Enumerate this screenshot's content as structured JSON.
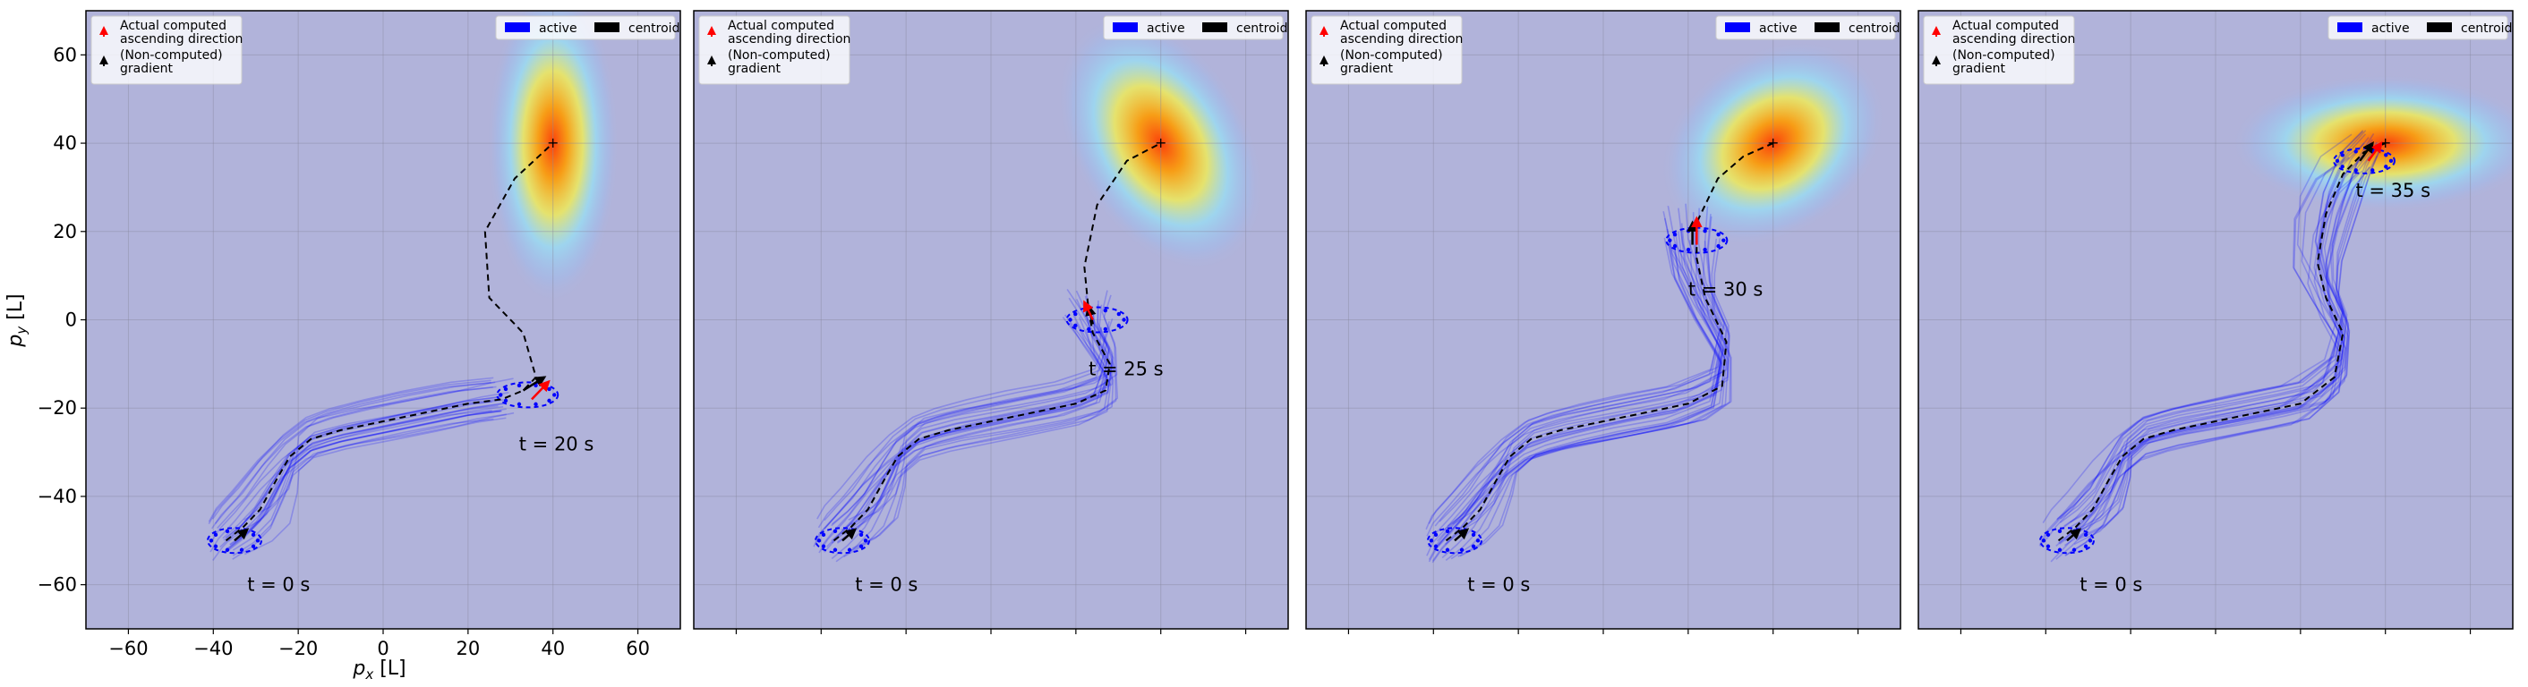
{
  "chart_data": {
    "type": "line",
    "xlabel": "p_x [L]",
    "ylabel": "p_y [L]",
    "xlim": [
      -70,
      70
    ],
    "ylim": [
      -70,
      70
    ],
    "xticks": [
      -60,
      -40,
      -20,
      0,
      20,
      40,
      60
    ],
    "yticks": [
      -60,
      -40,
      -20,
      0,
      20,
      40,
      60
    ],
    "grid": true,
    "colors": {
      "background": "#b1b3da",
      "active": "#0000ff",
      "centroid": "#000000",
      "ascending": "#ff0000",
      "gradient": "#000000"
    },
    "legend_arrows": {
      "placement": "top-left",
      "items": [
        {
          "label": "Actual computed ascending direction",
          "lines": [
            "Actual computed",
            "ascending direction"
          ],
          "color": "#ff0000"
        },
        {
          "label": "(Non-computed) gradient",
          "lines": [
            "(Non-computed)",
            "gradient"
          ],
          "color": "#000000"
        }
      ]
    },
    "legend_series": {
      "placement": "top-right",
      "items": [
        {
          "label": "active",
          "color": "#0000ff"
        },
        {
          "label": "centroid",
          "color": "#000000"
        }
      ]
    },
    "source": {
      "x": 40,
      "y": 40
    },
    "start_label": "t = 0 s",
    "panels": [
      {
        "time_label": "t = 20 s",
        "field_spread": [
          6,
          14
        ],
        "field_tilt": 0,
        "centroid_path": [
          [
            -37,
            -50
          ],
          [
            -33,
            -47
          ],
          [
            -29,
            -43
          ],
          [
            -25,
            -36
          ],
          [
            -22,
            -31
          ],
          [
            -17,
            -27
          ],
          [
            -10,
            -25
          ],
          [
            0,
            -23
          ],
          [
            10,
            -21
          ],
          [
            20,
            -19
          ],
          [
            28,
            -18
          ],
          [
            33,
            -16
          ],
          [
            35,
            -10
          ],
          [
            28,
            0
          ],
          [
            25,
            15
          ],
          [
            29,
            29
          ],
          [
            35,
            37
          ],
          [
            40,
            40
          ]
        ],
        "centroid_path_dashed": [
          [
            -37,
            -50
          ],
          [
            -33,
            -47
          ],
          [
            -29,
            -43
          ],
          [
            -25,
            -36
          ],
          [
            -22,
            -31
          ],
          [
            -17,
            -27
          ],
          [
            -10,
            -25
          ],
          [
            0,
            -23
          ],
          [
            10,
            -21
          ],
          [
            20,
            -19
          ],
          [
            28,
            -18
          ],
          [
            33,
            -16
          ],
          [
            36,
            -13
          ],
          [
            33,
            -3
          ],
          [
            25,
            5
          ],
          [
            24,
            20
          ],
          [
            31,
            32
          ],
          [
            40,
            40
          ]
        ],
        "formation": [
          34,
          -17
        ],
        "ascending_arrow": [
          [
            35,
            -18
          ],
          [
            39,
            -14
          ]
        ],
        "gradient_arrow": [
          [
            33,
            -16
          ],
          [
            38,
            -13
          ]
        ]
      },
      {
        "time_label": "t = 25 s",
        "field_spread": [
          8,
          12
        ],
        "field_tilt": 30,
        "centroid_path_dashed": [
          [
            -37,
            -50
          ],
          [
            -33,
            -47
          ],
          [
            -29,
            -43
          ],
          [
            -25,
            -36
          ],
          [
            -22,
            -31
          ],
          [
            -17,
            -27
          ],
          [
            -10,
            -25
          ],
          [
            0,
            -23
          ],
          [
            10,
            -21
          ],
          [
            20,
            -19
          ],
          [
            27,
            -16
          ],
          [
            28,
            -10
          ],
          [
            24,
            -3
          ],
          [
            23,
            2
          ],
          [
            22,
            12
          ],
          [
            25,
            26
          ],
          [
            32,
            36
          ],
          [
            40,
            40
          ]
        ],
        "formation": [
          25,
          0
        ],
        "ascending_arrow": [
          [
            24,
            0
          ],
          [
            22,
            4
          ]
        ],
        "gradient_arrow": [
          [
            24,
            -1
          ],
          [
            23,
            3
          ]
        ]
      },
      {
        "time_label": "t = 30 s",
        "field_spread": [
          11,
          8
        ],
        "field_tilt": 35,
        "centroid_path_dashed": [
          [
            -37,
            -50
          ],
          [
            -33,
            -47
          ],
          [
            -29,
            -43
          ],
          [
            -25,
            -36
          ],
          [
            -22,
            -31
          ],
          [
            -17,
            -27
          ],
          [
            -10,
            -25
          ],
          [
            0,
            -23
          ],
          [
            10,
            -21
          ],
          [
            20,
            -19
          ],
          [
            28,
            -15
          ],
          [
            29,
            -5
          ],
          [
            24,
            5
          ],
          [
            22,
            14
          ],
          [
            22,
            22
          ],
          [
            27,
            32
          ],
          [
            33,
            37
          ],
          [
            40,
            40
          ]
        ],
        "formation": [
          22,
          18
        ],
        "ascending_arrow": [
          [
            22,
            17
          ],
          [
            22,
            23
          ]
        ],
        "gradient_arrow": [
          [
            21,
            17
          ],
          [
            21,
            22
          ]
        ]
      },
      {
        "time_label": "t = 35 s",
        "field_spread": [
          14,
          6
        ],
        "field_tilt": 0,
        "centroid_path_dashed": [
          [
            -37,
            -50
          ],
          [
            -33,
            -47
          ],
          [
            -29,
            -43
          ],
          [
            -25,
            -36
          ],
          [
            -22,
            -31
          ],
          [
            -17,
            -27
          ],
          [
            -10,
            -25
          ],
          [
            0,
            -23
          ],
          [
            10,
            -21
          ],
          [
            20,
            -19
          ],
          [
            28,
            -13
          ],
          [
            30,
            -3
          ],
          [
            26,
            5
          ],
          [
            24,
            13
          ],
          [
            26,
            24
          ],
          [
            30,
            33
          ],
          [
            35,
            38
          ],
          [
            40,
            40
          ]
        ],
        "formation": [
          35,
          36
        ],
        "ascending_arrow": [
          [
            36,
            36
          ],
          [
            39,
            40
          ]
        ],
        "gradient_arrow": [
          [
            34,
            36
          ],
          [
            37,
            40
          ]
        ]
      }
    ]
  }
}
